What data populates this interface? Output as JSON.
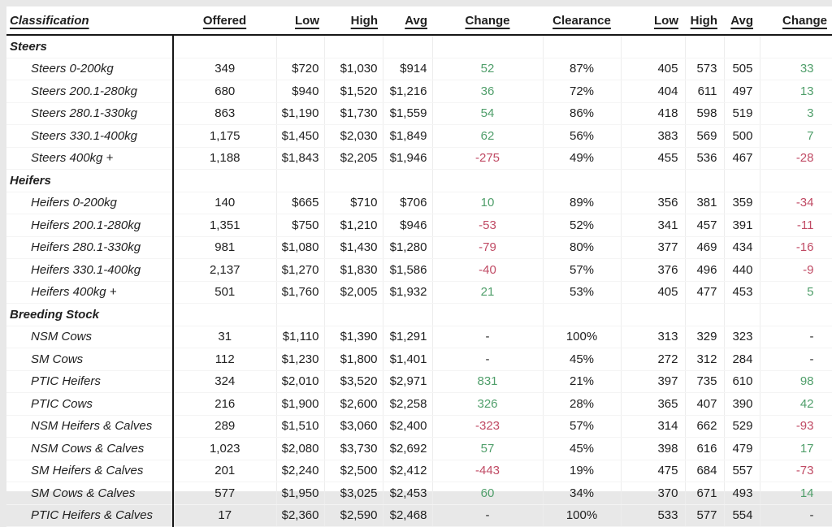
{
  "table": {
    "headers": [
      "Classification",
      "Offered",
      "Low",
      "High",
      "Avg",
      "Change",
      "Clearance",
      "Low",
      "High",
      "Avg",
      "Change"
    ],
    "colors": {
      "positive_change": "#4f9e6a",
      "negative_change": "#c04a64",
      "divider": "#161616",
      "page_background": "#e8e8e8"
    },
    "sections": [
      {
        "title": "Steers",
        "rows": [
          [
            "Steers 0-200kg",
            "349",
            "$720",
            "$1,030",
            "$914",
            "52",
            "87%",
            "405",
            "573",
            "505",
            "33"
          ],
          [
            "Steers 200.1-280kg",
            "680",
            "$940",
            "$1,520",
            "$1,216",
            "36",
            "72%",
            "404",
            "611",
            "497",
            "13"
          ],
          [
            "Steers 280.1-330kg",
            "863",
            "$1,190",
            "$1,730",
            "$1,559",
            "54",
            "86%",
            "418",
            "598",
            "519",
            "3"
          ],
          [
            "Steers 330.1-400kg",
            "1,175",
            "$1,450",
            "$2,030",
            "$1,849",
            "62",
            "56%",
            "383",
            "569",
            "500",
            "7"
          ],
          [
            "Steers 400kg +",
            "1,188",
            "$1,843",
            "$2,205",
            "$1,946",
            "-275",
            "49%",
            "455",
            "536",
            "467",
            "-28"
          ]
        ]
      },
      {
        "title": "Heifers",
        "rows": [
          [
            "Heifers 0-200kg",
            "140",
            "$665",
            "$710",
            "$706",
            "10",
            "89%",
            "356",
            "381",
            "359",
            "-34"
          ],
          [
            "Heifers 200.1-280kg",
            "1,351",
            "$750",
            "$1,210",
            "$946",
            "-53",
            "52%",
            "341",
            "457",
            "391",
            "-11"
          ],
          [
            "Heifers 280.1-330kg",
            "981",
            "$1,080",
            "$1,430",
            "$1,280",
            "-79",
            "80%",
            "377",
            "469",
            "434",
            "-16"
          ],
          [
            "Heifers 330.1-400kg",
            "2,137",
            "$1,270",
            "$1,830",
            "$1,586",
            "-40",
            "57%",
            "376",
            "496",
            "440",
            "-9"
          ],
          [
            "Heifers 400kg +",
            "501",
            "$1,760",
            "$2,005",
            "$1,932",
            "21",
            "53%",
            "405",
            "477",
            "453",
            "5"
          ]
        ]
      },
      {
        "title": "Breeding Stock",
        "rows": [
          [
            "NSM Cows",
            "31",
            "$1,110",
            "$1,390",
            "$1,291",
            "-",
            "100%",
            "313",
            "329",
            "323",
            "-"
          ],
          [
            "SM Cows",
            "112",
            "$1,230",
            "$1,800",
            "$1,401",
            "-",
            "45%",
            "272",
            "312",
            "284",
            "-"
          ],
          [
            "PTIC Heifers",
            "324",
            "$2,010",
            "$3,520",
            "$2,971",
            "831",
            "21%",
            "397",
            "735",
            "610",
            "98"
          ],
          [
            "PTIC Cows",
            "216",
            "$1,900",
            "$2,600",
            "$2,258",
            "326",
            "28%",
            "365",
            "407",
            "390",
            "42"
          ],
          [
            "NSM Heifers & Calves",
            "289",
            "$1,510",
            "$3,060",
            "$2,400",
            "-323",
            "57%",
            "314",
            "662",
            "529",
            "-93"
          ],
          [
            "NSM Cows & Calves",
            "1,023",
            "$2,080",
            "$3,730",
            "$2,692",
            "57",
            "45%",
            "398",
            "616",
            "479",
            "17"
          ],
          [
            "SM Heifers & Calves",
            "201",
            "$2,240",
            "$2,500",
            "$2,412",
            "-443",
            "19%",
            "475",
            "684",
            "557",
            "-73"
          ],
          [
            "SM Cows & Calves",
            "577",
            "$1,950",
            "$3,025",
            "$2,453",
            "60",
            "34%",
            "370",
            "671",
            "493",
            "14"
          ],
          [
            "PTIC Heifers & Calves",
            "17",
            "$2,360",
            "$2,590",
            "$2,468",
            "-",
            "100%",
            "533",
            "577",
            "554",
            "-"
          ]
        ]
      }
    ]
  }
}
